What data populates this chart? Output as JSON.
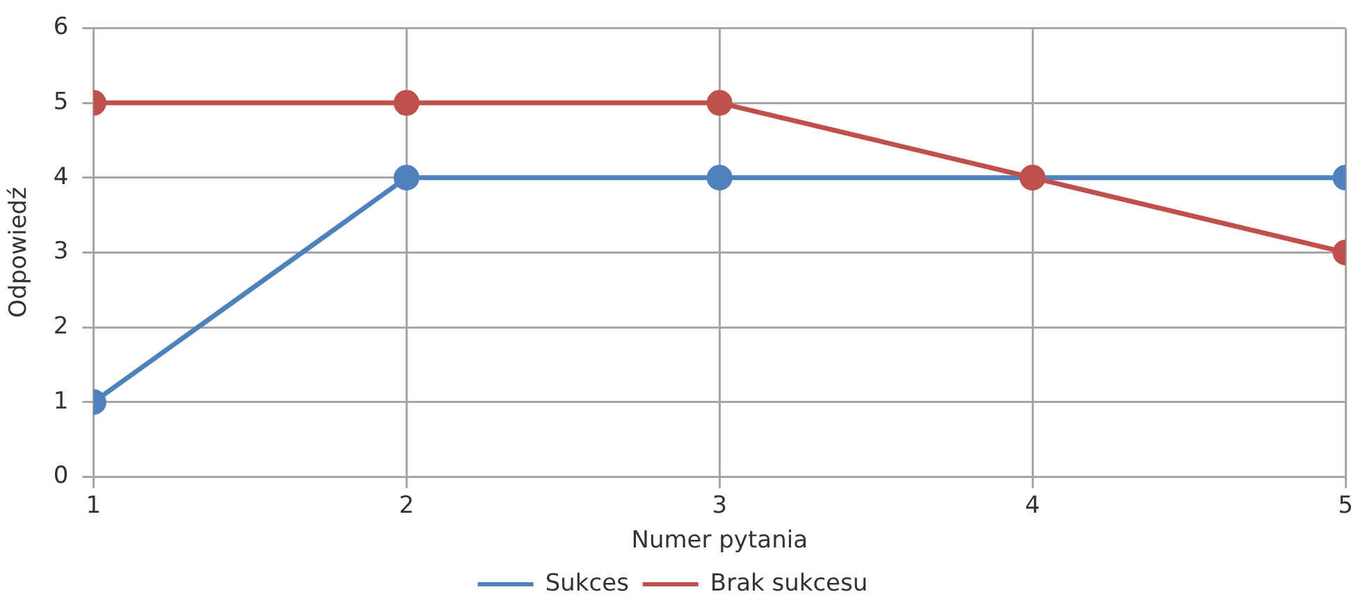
{
  "chart_data": {
    "type": "line",
    "xlabel": "Numer pytania",
    "ylabel": "Odpowiedź",
    "x": [
      1,
      2,
      3,
      4,
      5
    ],
    "xlim": [
      1,
      5
    ],
    "xticks": [
      1,
      2,
      3,
      4,
      5
    ],
    "ylim": [
      0,
      6
    ],
    "yticks": [
      0,
      1,
      2,
      3,
      4,
      5,
      6
    ],
    "grid": true,
    "legend": "bottom",
    "marker": "circle",
    "line_style": "solid",
    "series": [
      {
        "name": "Sukces",
        "color": "#4f81bd",
        "values": [
          1,
          4,
          4,
          4,
          4
        ]
      },
      {
        "name": "Brak sukcesu",
        "color": "#c0504d",
        "values": [
          5,
          5,
          5,
          4,
          3
        ]
      }
    ]
  }
}
